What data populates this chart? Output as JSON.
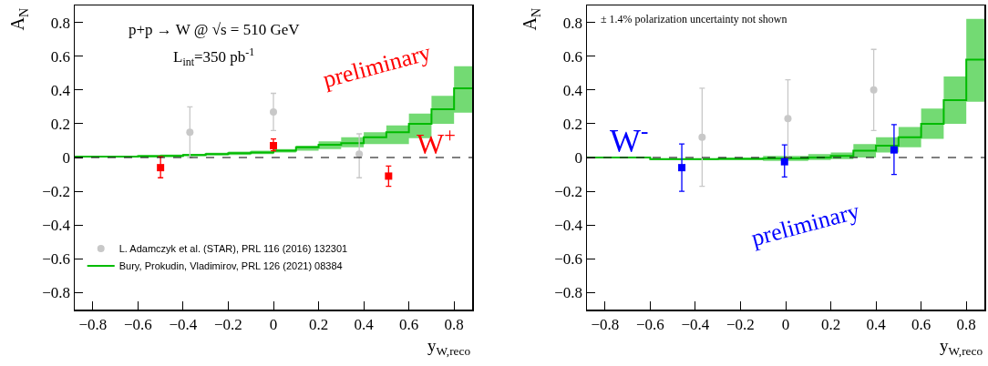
{
  "chart_data": [
    {
      "type": "scatter",
      "xlabel": "y$_{W,reco}$",
      "ylabel": "A$_{N}$",
      "annotations": [
        "p+p → W @ √s = 510 GeV",
        "L$_{int}$=350 pb$^{-1}$",
        "preliminary",
        "W$^{+}$"
      ],
      "xlim": [
        -0.88,
        0.88
      ],
      "ylim": [
        -0.9,
        0.9
      ],
      "xticks": [
        -0.8,
        -0.6,
        -0.4,
        -0.2,
        0,
        0.2,
        0.4,
        0.6,
        0.8
      ],
      "yticks": [
        -0.8,
        -0.6,
        -0.4,
        -0.2,
        0,
        0.2,
        0.4,
        0.6,
        0.8
      ],
      "grid": false,
      "legend": "bottom left",
      "ref_lines": [
        {
          "axis": "y",
          "value": 0,
          "label": null,
          "color": "#000000",
          "line_style": "dashed"
        }
      ],
      "series": [
        {
          "type": "step",
          "name": "Bury, Prokudin, Vladimirov, PRL 126 (2021) 08384",
          "color": "#00bb00",
          "marker": "none",
          "line_style": "solid",
          "x": [
            -0.88,
            -0.8,
            -0.7,
            -0.6,
            -0.5,
            -0.4,
            -0.3,
            -0.2,
            -0.1,
            0,
            0.1,
            0.2,
            0.3,
            0.4,
            0.5,
            0.6,
            0.7,
            0.8,
            0.88
          ],
          "values": [
            0.005,
            0.005,
            0.005,
            0.008,
            0.01,
            0.015,
            0.02,
            0.025,
            0.03,
            0.04,
            0.06,
            0.075,
            0.085,
            0.12,
            0.15,
            0.2,
            0.285,
            0.41,
            0.41
          ],
          "lower": [
            0,
            0,
            0,
            0,
            0.003,
            0.008,
            0.012,
            0.015,
            0.02,
            0.03,
            0.04,
            0.05,
            0.06,
            0.08,
            0.08,
            0.115,
            0.2,
            0.265,
            0.265
          ],
          "upper": [
            0.01,
            0.01,
            0.01,
            0.015,
            0.018,
            0.022,
            0.028,
            0.035,
            0.04,
            0.05,
            0.07,
            0.095,
            0.12,
            0.15,
            0.19,
            0.26,
            0.365,
            0.54,
            0.54
          ]
        },
        {
          "type": "scatter",
          "name": "L. Adamczyk et al. (STAR), PRL 116 (2016) 132301",
          "color": "#c8c8c8",
          "marker": "circle",
          "x": [
            -0.37,
            0,
            0.38
          ],
          "values": [
            0.15,
            0.27,
            0.02
          ],
          "errors": [
            [
              0,
              0.3
            ],
            [
              0.16,
              0.38
            ],
            [
              -0.12,
              0.14
            ]
          ]
        },
        {
          "type": "scatter",
          "color": "#ff0000",
          "marker": "square",
          "x": [
            -0.5,
            0,
            0.51
          ],
          "values": [
            -0.06,
            0.07,
            -0.11
          ],
          "errors": [
            [
              -0.12,
              0.005
            ],
            [
              0.04,
              0.11
            ],
            [
              -0.17,
              -0.05
            ]
          ]
        }
      ]
    },
    {
      "type": "scatter",
      "xlabel": "y$_{W,reco}$",
      "ylabel": "A$_{N}$",
      "annotations": [
        "± 1.4% polarization uncertainty not shown",
        "W$^{-}$",
        "preliminary"
      ],
      "xlim": [
        -0.88,
        0.88
      ],
      "ylim": [
        -0.9,
        0.9
      ],
      "xticks": [
        -0.8,
        -0.6,
        -0.4,
        -0.2,
        0,
        0.2,
        0.4,
        0.6,
        0.8
      ],
      "yticks": [
        -0.8,
        -0.6,
        -0.4,
        -0.2,
        0,
        0.2,
        0.4,
        0.6,
        0.8
      ],
      "grid": false,
      "ref_lines": [
        {
          "axis": "y",
          "value": 0,
          "label": null,
          "color": "#000000",
          "line_style": "dashed"
        }
      ],
      "series": [
        {
          "type": "step",
          "color": "#00bb00",
          "marker": "none",
          "line_style": "solid",
          "x": [
            -0.88,
            -0.6,
            -0.3,
            -0.1,
            0.1,
            0.2,
            0.3,
            0.4,
            0.5,
            0.6,
            0.7,
            0.8,
            0.88
          ],
          "values": [
            0,
            -0.01,
            -0.008,
            -0.005,
            0,
            0.01,
            0.04,
            0.07,
            0.12,
            0.2,
            0.34,
            0.58,
            0.58
          ],
          "lower": [
            -0.005,
            -0.015,
            -0.015,
            -0.02,
            -0.015,
            -0.01,
            0,
            0.03,
            0.06,
            0.11,
            0.2,
            0.33,
            0.33
          ],
          "upper": [
            0.005,
            -0.005,
            0,
            0.01,
            0.02,
            0.03,
            0.08,
            0.12,
            0.18,
            0.29,
            0.48,
            0.82,
            0.82
          ]
        },
        {
          "type": "scatter",
          "color": "#c8c8c8",
          "marker": "circle",
          "x": [
            -0.37,
            0.01,
            0.39
          ],
          "values": [
            0.12,
            0.23,
            0.4
          ],
          "errors": [
            [
              -0.17,
              0.41
            ],
            [
              0,
              0.46
            ],
            [
              0.16,
              0.64
            ]
          ]
        },
        {
          "type": "scatter",
          "color": "#0000ff",
          "marker": "square",
          "x": [
            -0.46,
            -0.005,
            0.48
          ],
          "values": [
            -0.06,
            -0.025,
            0.045
          ],
          "errors": [
            [
              -0.2,
              0.08
            ],
            [
              -0.115,
              0.075
            ],
            [
              -0.1,
              0.195
            ]
          ]
        }
      ]
    }
  ]
}
